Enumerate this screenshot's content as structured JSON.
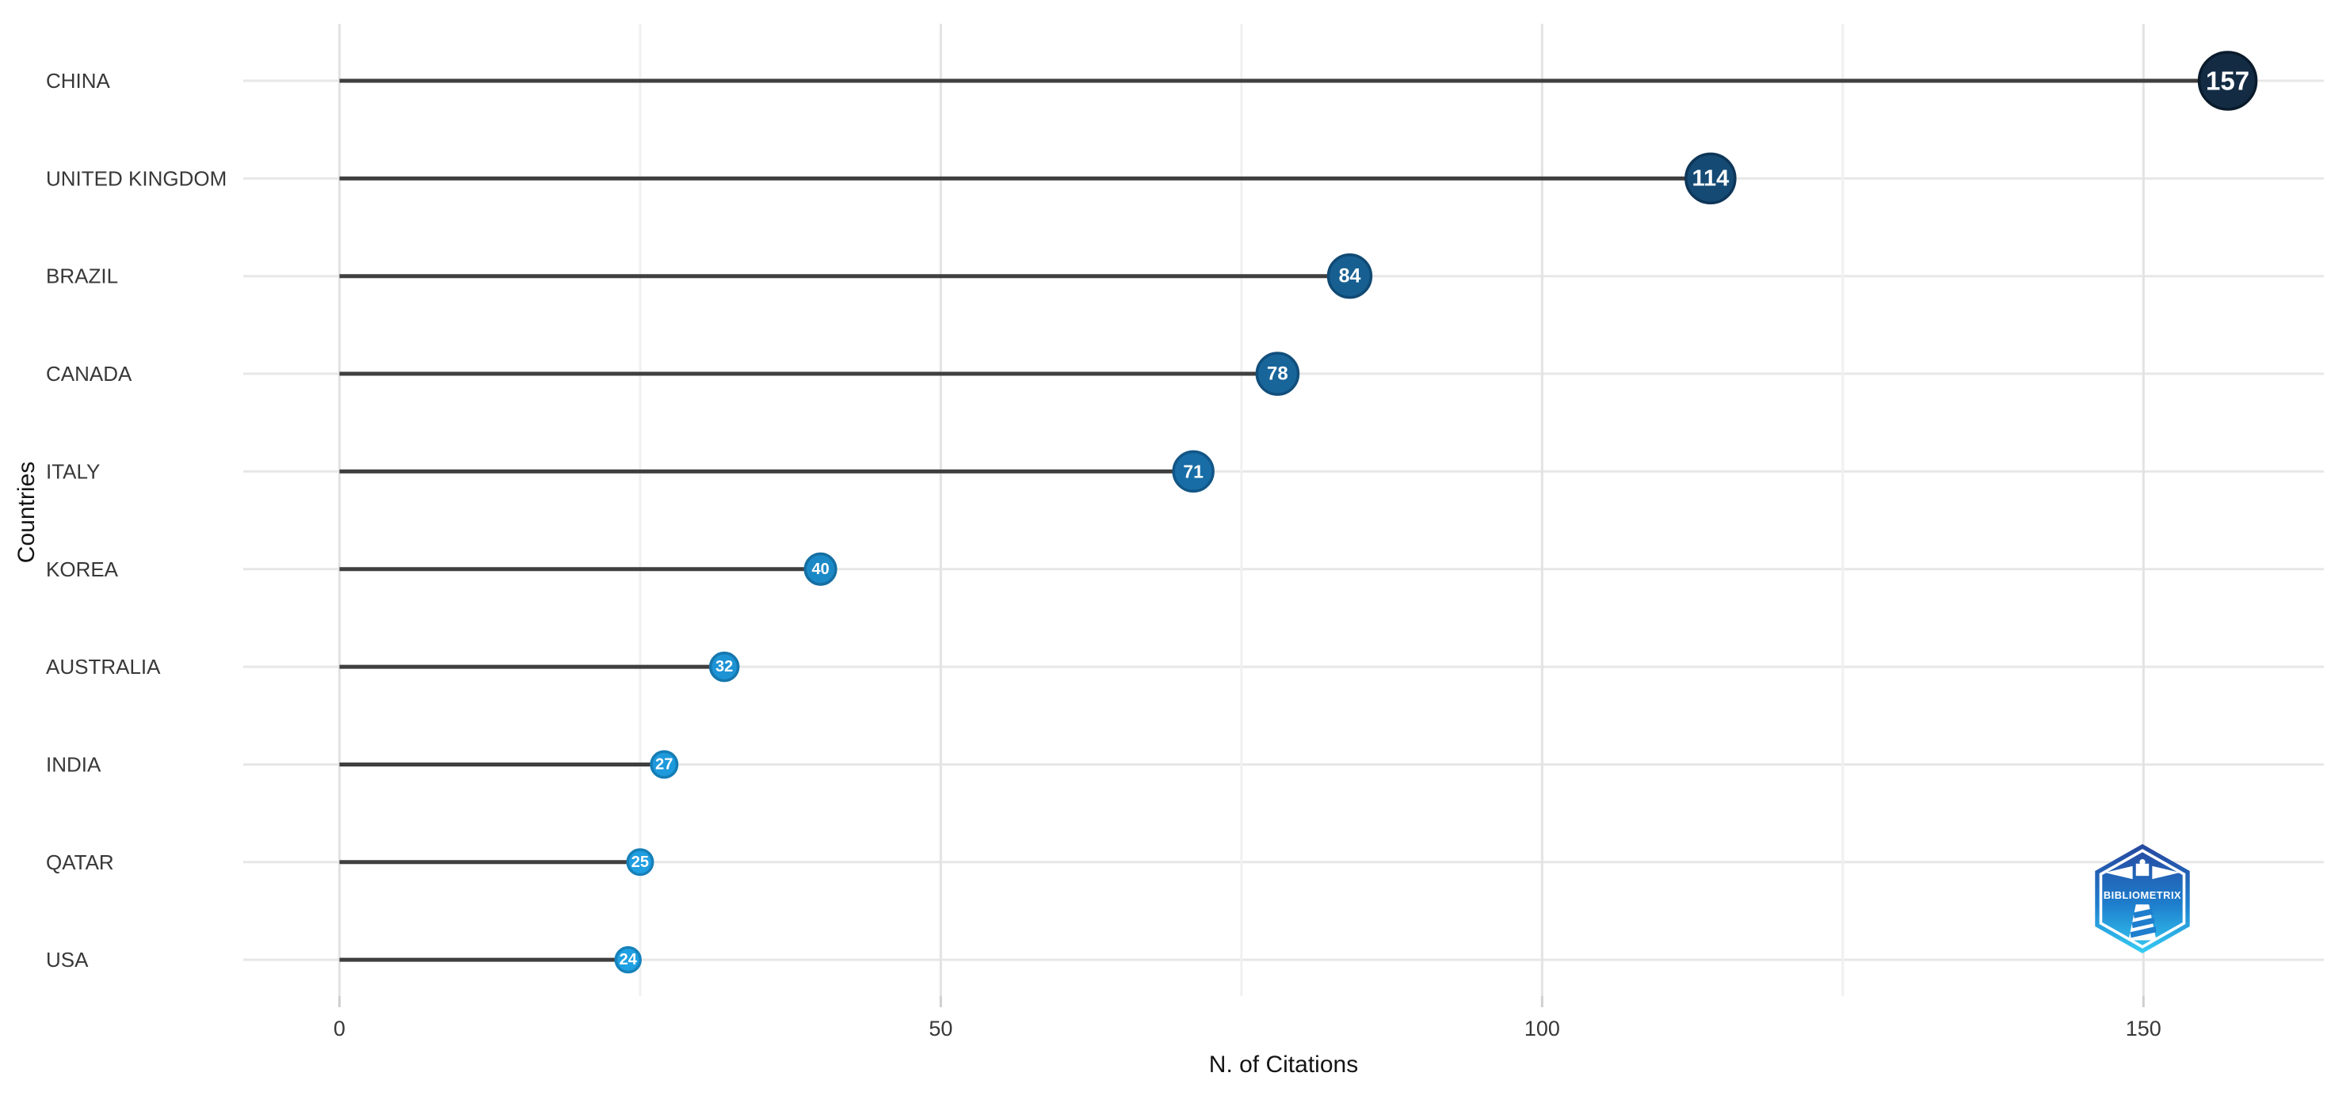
{
  "chart_data": {
    "type": "bar",
    "variant": "lollipop",
    "orientation": "horizontal",
    "title": "",
    "xlabel": "N. of Citations",
    "ylabel": "Countries",
    "categories": [
      "CHINA",
      "UNITED KINGDOM",
      "BRAZIL",
      "CANADA",
      "ITALY",
      "KOREA",
      "AUSTRALIA",
      "INDIA",
      "QATAR",
      "USA"
    ],
    "values": [
      157,
      114,
      84,
      78,
      71,
      40,
      32,
      27,
      25,
      24
    ],
    "point_fills": [
      "#132c44",
      "#154a74",
      "#175f91",
      "#18659a",
      "#186da6",
      "#1c89c7",
      "#1d93d4",
      "#1e9adc",
      "#1f9ee0",
      "#1fa0e2"
    ],
    "point_strokes": [
      "#0a1b2c",
      "#0e3658",
      "#104a74",
      "#114f7c",
      "#125687",
      "#156fa3",
      "#1577ae",
      "#157db5",
      "#1680b9",
      "#1682bb"
    ],
    "xlim": [
      -8,
      165
    ],
    "x_major_ticks": [
      0,
      50,
      100,
      150
    ],
    "x_minor_gridlines": [
      25,
      75,
      125
    ],
    "grid": true,
    "legend": "none"
  },
  "watermark": {
    "label": "BIBLIOMETRIX"
  },
  "colors": {
    "stem": "#3f3f3f",
    "grid_major": "#e3e3e3",
    "grid_minor": "#f0f0f0",
    "grid_row": "#e7e7e7",
    "tick_mark": "#cfcfcf",
    "axis_text": "#383838",
    "dot_label_text": "#ffffff",
    "logo_top": "#27479e",
    "logo_mid": "#1e7ecd",
    "logo_bottom": "#36cdf4"
  }
}
